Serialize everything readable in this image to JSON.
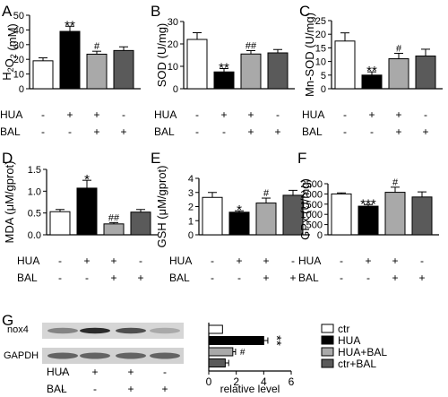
{
  "colors": {
    "ctr": "#ffffff",
    "HUA": "#000000",
    "HUA+BAL": "#a9a9a9",
    "ctr+BAL": "#5a5a5a",
    "axis": "#000000"
  },
  "row_labels": {
    "hua": "HUA",
    "bal": "BAL"
  },
  "signs": {
    "hua": [
      "-",
      "+",
      "+",
      "-"
    ],
    "bal": [
      "-",
      "-",
      "+",
      "+"
    ]
  },
  "chart_data": [
    {
      "panel": "A",
      "type": "bar",
      "ylabel": "H2O2 (mM)",
      "ylim": [
        0,
        50
      ],
      "yticks": [
        0,
        10,
        20,
        30,
        40,
        50
      ],
      "groups": [
        "ctr",
        "HUA",
        "HUA+BAL",
        "ctr+BAL"
      ],
      "values": [
        19,
        39,
        23.5,
        26
      ],
      "errors": [
        2,
        3.5,
        2,
        2.5
      ],
      "annotations": [
        "",
        "**",
        "#",
        ""
      ]
    },
    {
      "panel": "B",
      "type": "bar",
      "ylabel": "SOD (U/mg)",
      "ylim": [
        0,
        30
      ],
      "yticks": [
        0,
        10,
        20,
        30
      ],
      "groups": [
        "ctr",
        "HUA",
        "HUA+BAL",
        "ctr+BAL"
      ],
      "values": [
        22,
        7.5,
        15.5,
        16
      ],
      "errors": [
        3,
        1.5,
        1.5,
        1.5
      ],
      "annotations": [
        "",
        "**",
        "##",
        ""
      ]
    },
    {
      "panel": "C",
      "type": "bar",
      "ylabel": "Mn-SOD (U/mg)",
      "ylim": [
        0,
        25
      ],
      "yticks": [
        0,
        5,
        10,
        15,
        20,
        25
      ],
      "groups": [
        "ctr",
        "HUA",
        "HUA+BAL",
        "ctr+BAL"
      ],
      "values": [
        17.5,
        5,
        11,
        12
      ],
      "errors": [
        3,
        1.2,
        2,
        2.5
      ],
      "annotations": [
        "",
        "**",
        "#",
        ""
      ]
    },
    {
      "panel": "D",
      "type": "bar",
      "ylabel": "MDA (μM/gprot)",
      "ylim": [
        0,
        1.5
      ],
      "yticks": [
        0.0,
        0.5,
        1.0,
        1.5
      ],
      "groups": [
        "ctr",
        "HUA",
        "HUA+BAL",
        "ctr+BAL"
      ],
      "values": [
        0.53,
        1.07,
        0.25,
        0.52
      ],
      "errors": [
        0.05,
        0.18,
        0.03,
        0.06
      ],
      "annotations": [
        "",
        "*",
        "##",
        ""
      ]
    },
    {
      "panel": "E",
      "type": "bar",
      "ylabel": "GSH (μM/gprot)",
      "ylim": [
        0,
        4
      ],
      "yticks": [
        0,
        1,
        2,
        3,
        4
      ],
      "groups": [
        "ctr",
        "HUA",
        "HUA+BAL",
        "ctr+BAL"
      ],
      "values": [
        2.65,
        1.6,
        2.25,
        2.8
      ],
      "errors": [
        0.35,
        0.1,
        0.35,
        0.35
      ],
      "annotations": [
        "",
        "*",
        "#",
        ""
      ]
    },
    {
      "panel": "F",
      "type": "bar",
      "ylabel": "GPx (U/mg)",
      "ylim": [
        0,
        2500
      ],
      "yticks": [
        0,
        500,
        1000,
        1500,
        2000,
        2500
      ],
      "groups": [
        "ctr",
        "HUA",
        "HUA+BAL",
        "ctr+BAL"
      ],
      "values": [
        2000,
        1400,
        2080,
        1850
      ],
      "errors": [
        50,
        80,
        250,
        250
      ],
      "annotations": [
        "",
        "***",
        "#",
        ""
      ]
    },
    {
      "panel": "G",
      "type": "bar",
      "orientation": "horizontal",
      "xlabel": "relative level",
      "xlim": [
        0,
        6
      ],
      "xticks": [
        0,
        2,
        4,
        6
      ],
      "categories": [
        "ctr",
        "HUA",
        "HUA+BAL",
        "ctr+BAL"
      ],
      "values": [
        1.0,
        4.0,
        1.75,
        1.2
      ],
      "errors": [
        0,
        0.3,
        0.2,
        0.25
      ],
      "annotations": [
        "",
        "**",
        "#",
        ""
      ],
      "legend": [
        "ctr",
        "HUA",
        "HUA+BAL",
        "ctr+BAL"
      ],
      "blot_labels": [
        "nox4",
        "GAPDH"
      ]
    }
  ]
}
